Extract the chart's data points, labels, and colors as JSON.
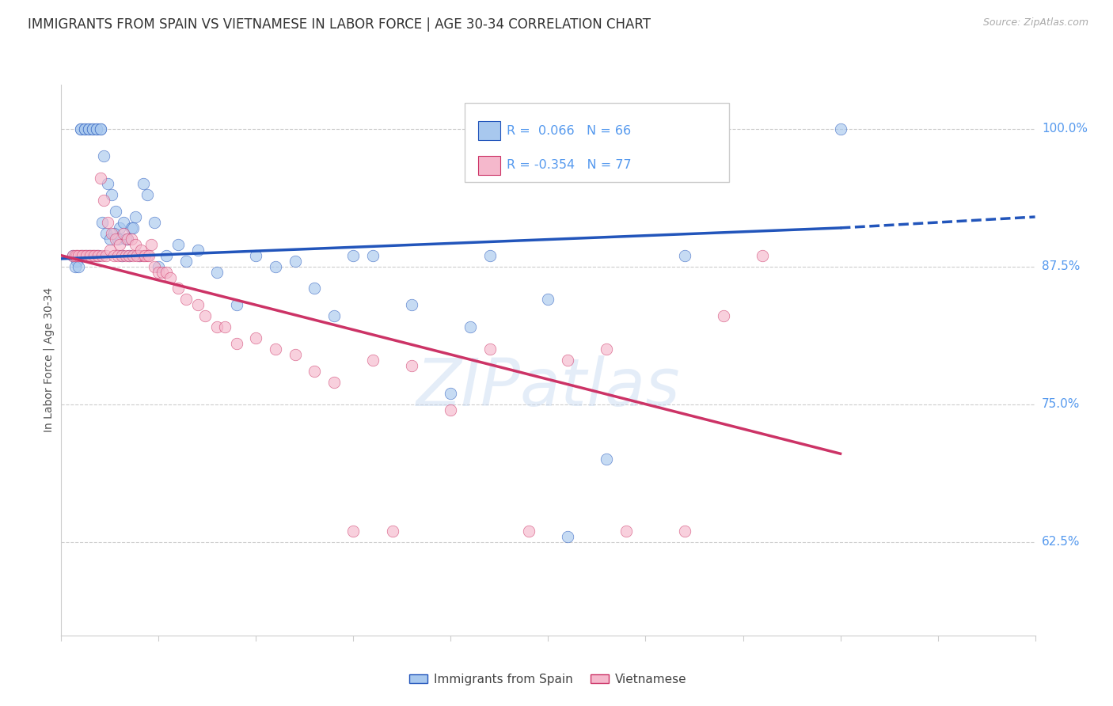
{
  "title": "IMMIGRANTS FROM SPAIN VS VIETNAMESE IN LABOR FORCE | AGE 30-34 CORRELATION CHART",
  "source": "Source: ZipAtlas.com",
  "ylabel": "In Labor Force | Age 30-34",
  "xlim": [
    0.0,
    25.0
  ],
  "ylim": [
    54.0,
    104.0
  ],
  "yticks": [
    62.5,
    75.0,
    87.5,
    100.0
  ],
  "blue_color": "#A8C8EE",
  "pink_color": "#F5B8CC",
  "trend_blue_color": "#2255BB",
  "trend_pink_color": "#CC3366",
  "legend1_text": "R =  0.066   N = 66",
  "legend2_text": "R = -0.354   N = 77",
  "bottom_legend1": "Immigrants from Spain",
  "bottom_legend2": "Vietnamese",
  "watermark": "ZIPatlas",
  "blue_scatter_x": [
    0.3,
    0.4,
    0.5,
    0.5,
    0.6,
    0.6,
    0.7,
    0.7,
    0.8,
    0.8,
    0.9,
    0.9,
    1.0,
    1.0,
    1.1,
    1.2,
    1.3,
    1.4,
    1.5,
    1.6,
    1.7,
    1.8,
    1.9,
    2.0,
    2.1,
    2.2,
    2.4,
    2.5,
    2.7,
    3.0,
    3.2,
    3.5,
    4.0,
    4.5,
    5.0,
    5.5,
    6.0,
    6.5,
    7.0,
    7.5,
    8.0,
    9.0,
    10.0,
    10.5,
    11.0,
    12.5,
    13.0,
    14.0,
    16.0,
    20.0,
    0.35,
    0.45,
    0.55,
    0.65,
    0.75,
    0.85,
    0.95,
    1.05,
    1.15,
    1.25,
    1.35,
    1.45,
    1.55,
    1.65,
    1.75,
    1.85
  ],
  "blue_scatter_y": [
    88.5,
    88.0,
    100.0,
    100.0,
    100.0,
    100.0,
    100.0,
    100.0,
    100.0,
    100.0,
    100.0,
    100.0,
    100.0,
    100.0,
    97.5,
    95.0,
    94.0,
    92.5,
    91.0,
    91.5,
    90.0,
    91.0,
    92.0,
    88.5,
    95.0,
    94.0,
    91.5,
    87.5,
    88.5,
    89.5,
    88.0,
    89.0,
    87.0,
    84.0,
    88.5,
    87.5,
    88.0,
    85.5,
    83.0,
    88.5,
    88.5,
    84.0,
    76.0,
    82.0,
    88.5,
    84.5,
    63.0,
    70.0,
    88.5,
    100.0,
    87.5,
    87.5,
    88.5,
    88.5,
    88.5,
    88.5,
    88.5,
    91.5,
    90.5,
    90.0,
    90.5,
    90.0,
    88.5,
    90.0,
    88.5,
    91.0
  ],
  "pink_scatter_x": [
    0.3,
    0.4,
    0.4,
    0.5,
    0.5,
    0.6,
    0.6,
    0.7,
    0.7,
    0.8,
    0.8,
    0.9,
    0.9,
    1.0,
    1.1,
    1.2,
    1.3,
    1.4,
    1.5,
    1.6,
    1.7,
    1.8,
    1.9,
    2.0,
    2.1,
    2.2,
    2.3,
    2.4,
    2.5,
    2.6,
    2.7,
    2.8,
    3.0,
    3.2,
    3.5,
    3.7,
    4.0,
    4.2,
    4.5,
    5.0,
    5.5,
    6.0,
    6.5,
    7.0,
    7.5,
    8.0,
    8.5,
    9.0,
    10.0,
    11.0,
    12.0,
    13.0,
    14.0,
    14.5,
    16.0,
    17.0,
    18.0,
    0.35,
    0.45,
    0.55,
    0.65,
    0.75,
    0.85,
    0.95,
    1.05,
    1.15,
    1.25,
    1.35,
    1.45,
    1.55,
    1.65,
    1.75,
    1.85,
    1.95,
    2.05,
    2.15,
    2.25
  ],
  "pink_scatter_y": [
    88.5,
    88.5,
    88.5,
    88.5,
    88.5,
    88.5,
    88.5,
    88.5,
    88.5,
    88.5,
    88.5,
    88.5,
    88.5,
    95.5,
    93.5,
    91.5,
    90.5,
    90.0,
    89.5,
    90.5,
    90.0,
    90.0,
    89.5,
    88.5,
    88.5,
    88.5,
    89.5,
    87.5,
    87.0,
    87.0,
    87.0,
    86.5,
    85.5,
    84.5,
    84.0,
    83.0,
    82.0,
    82.0,
    80.5,
    81.0,
    80.0,
    79.5,
    78.0,
    77.0,
    63.5,
    79.0,
    63.5,
    78.5,
    74.5,
    80.0,
    63.5,
    79.0,
    80.0,
    63.5,
    63.5,
    83.0,
    88.5,
    88.5,
    88.5,
    88.5,
    88.5,
    88.5,
    88.5,
    88.5,
    88.5,
    88.5,
    89.0,
    88.5,
    88.5,
    88.5,
    88.5,
    88.5,
    88.5,
    88.5,
    89.0,
    88.5,
    88.5
  ],
  "blue_trend_x0": 0.0,
  "blue_trend_x1": 20.0,
  "blue_trend_y0": 88.2,
  "blue_trend_y1": 91.0,
  "blue_dash_x0": 20.0,
  "blue_dash_x1": 25.0,
  "blue_dash_y0": 91.0,
  "blue_dash_y1": 92.0,
  "pink_trend_x0": 0.0,
  "pink_trend_x1": 20.0,
  "pink_trend_y0": 88.5,
  "pink_trend_y1": 70.5,
  "bg_color": "#ffffff",
  "grid_color": "#cccccc",
  "title_fontsize": 12,
  "source_fontsize": 9,
  "scatter_size": 110,
  "scatter_alpha": 0.65,
  "trend_lw": 2.5,
  "ylabel_fontsize": 10,
  "ytick_fontsize": 11,
  "xtick_fontsize": 11,
  "tick_color": "#5599EE",
  "title_color": "#333333",
  "ylabel_color": "#555555"
}
